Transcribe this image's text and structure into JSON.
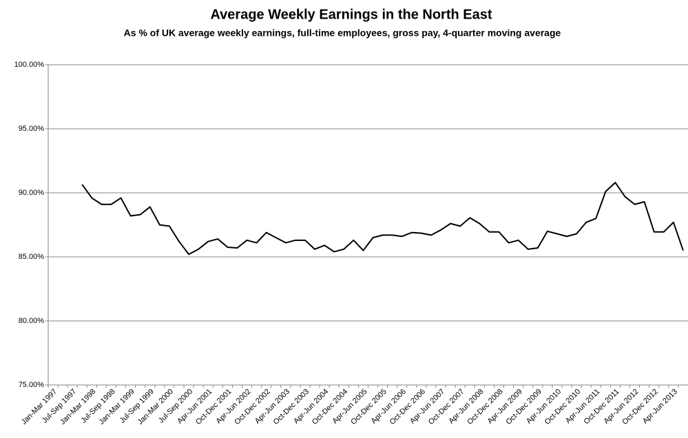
{
  "chart_data": {
    "type": "line",
    "title": "Average Weekly Earnings in the North East",
    "subtitle": "As % of UK average weekly earnings, full-time employees,  gross pay, 4-quarter moving average",
    "categories": [
      "Jan-Mar 1997",
      null,
      "Jul-Sep 1997",
      null,
      "Jan-Mar 1998",
      null,
      "Jul-Sep 1998",
      null,
      "Jan-Mar 1999",
      null,
      "Jul-Sep 1999",
      null,
      "Jan-Mar 2000",
      null,
      "Jul-Sep 2000",
      null,
      "Apr-Jun 2001",
      null,
      "Oct-Dec 2001",
      null,
      "Apr-Jun 2002",
      null,
      "Oct-Dec 2002",
      null,
      "Apr-Jun 2003",
      null,
      "Oct-Dec 2003",
      null,
      "Apr-Jun 2004",
      null,
      "Oct-Dec 2004",
      null,
      "Apr-Jun 2005",
      null,
      "Oct-Dec 2005",
      null,
      "Apr-Jun 2006",
      null,
      "Oct-Dec 2006",
      null,
      "Apr-Jun 2007",
      null,
      "Oct-Dec 2007",
      null,
      "Apr-Jun 2008",
      null,
      "Oct-Dec 2008",
      null,
      "Apr-Jun 2009",
      null,
      "Oct-Dec 2009",
      null,
      "Apr-Jun 2010",
      null,
      "Oct-Dec 2010",
      null,
      "Apr-Jun 2011",
      null,
      "Oct-Dec 2011",
      null,
      "Apr-Jun 2012",
      null,
      "Oct-Dec 2012",
      null,
      "Apr-Jun 2013",
      null
    ],
    "values": [
      null,
      null,
      null,
      90.65,
      89.6,
      89.1,
      89.1,
      89.6,
      88.2,
      88.3,
      88.9,
      87.5,
      87.4,
      86.2,
      85.2,
      85.6,
      86.2,
      86.4,
      85.75,
      85.7,
      86.3,
      86.1,
      86.9,
      86.5,
      86.1,
      86.3,
      86.3,
      85.6,
      85.9,
      85.4,
      85.6,
      86.3,
      85.5,
      86.5,
      86.7,
      86.7,
      86.6,
      86.9,
      86.85,
      86.7,
      87.1,
      87.6,
      87.4,
      88.05,
      87.6,
      86.95,
      86.95,
      86.1,
      86.3,
      85.6,
      85.7,
      87.0,
      86.8,
      86.6,
      86.8,
      87.7,
      88.0,
      90.1,
      90.8,
      89.7,
      89.1,
      89.3,
      86.95,
      86.95,
      87.7,
      85.5
    ],
    "color": "#000000",
    "ylim": [
      75,
      100
    ],
    "yticks": [
      {
        "value": 75,
        "label": "75.00%"
      },
      {
        "value": 80,
        "label": "80.00%"
      },
      {
        "value": 85,
        "label": "85.00%"
      },
      {
        "value": 90,
        "label": "90.00%"
      },
      {
        "value": 95,
        "label": "95.00%"
      },
      {
        "value": 100,
        "label": "100.00%"
      }
    ],
    "grid": true
  }
}
